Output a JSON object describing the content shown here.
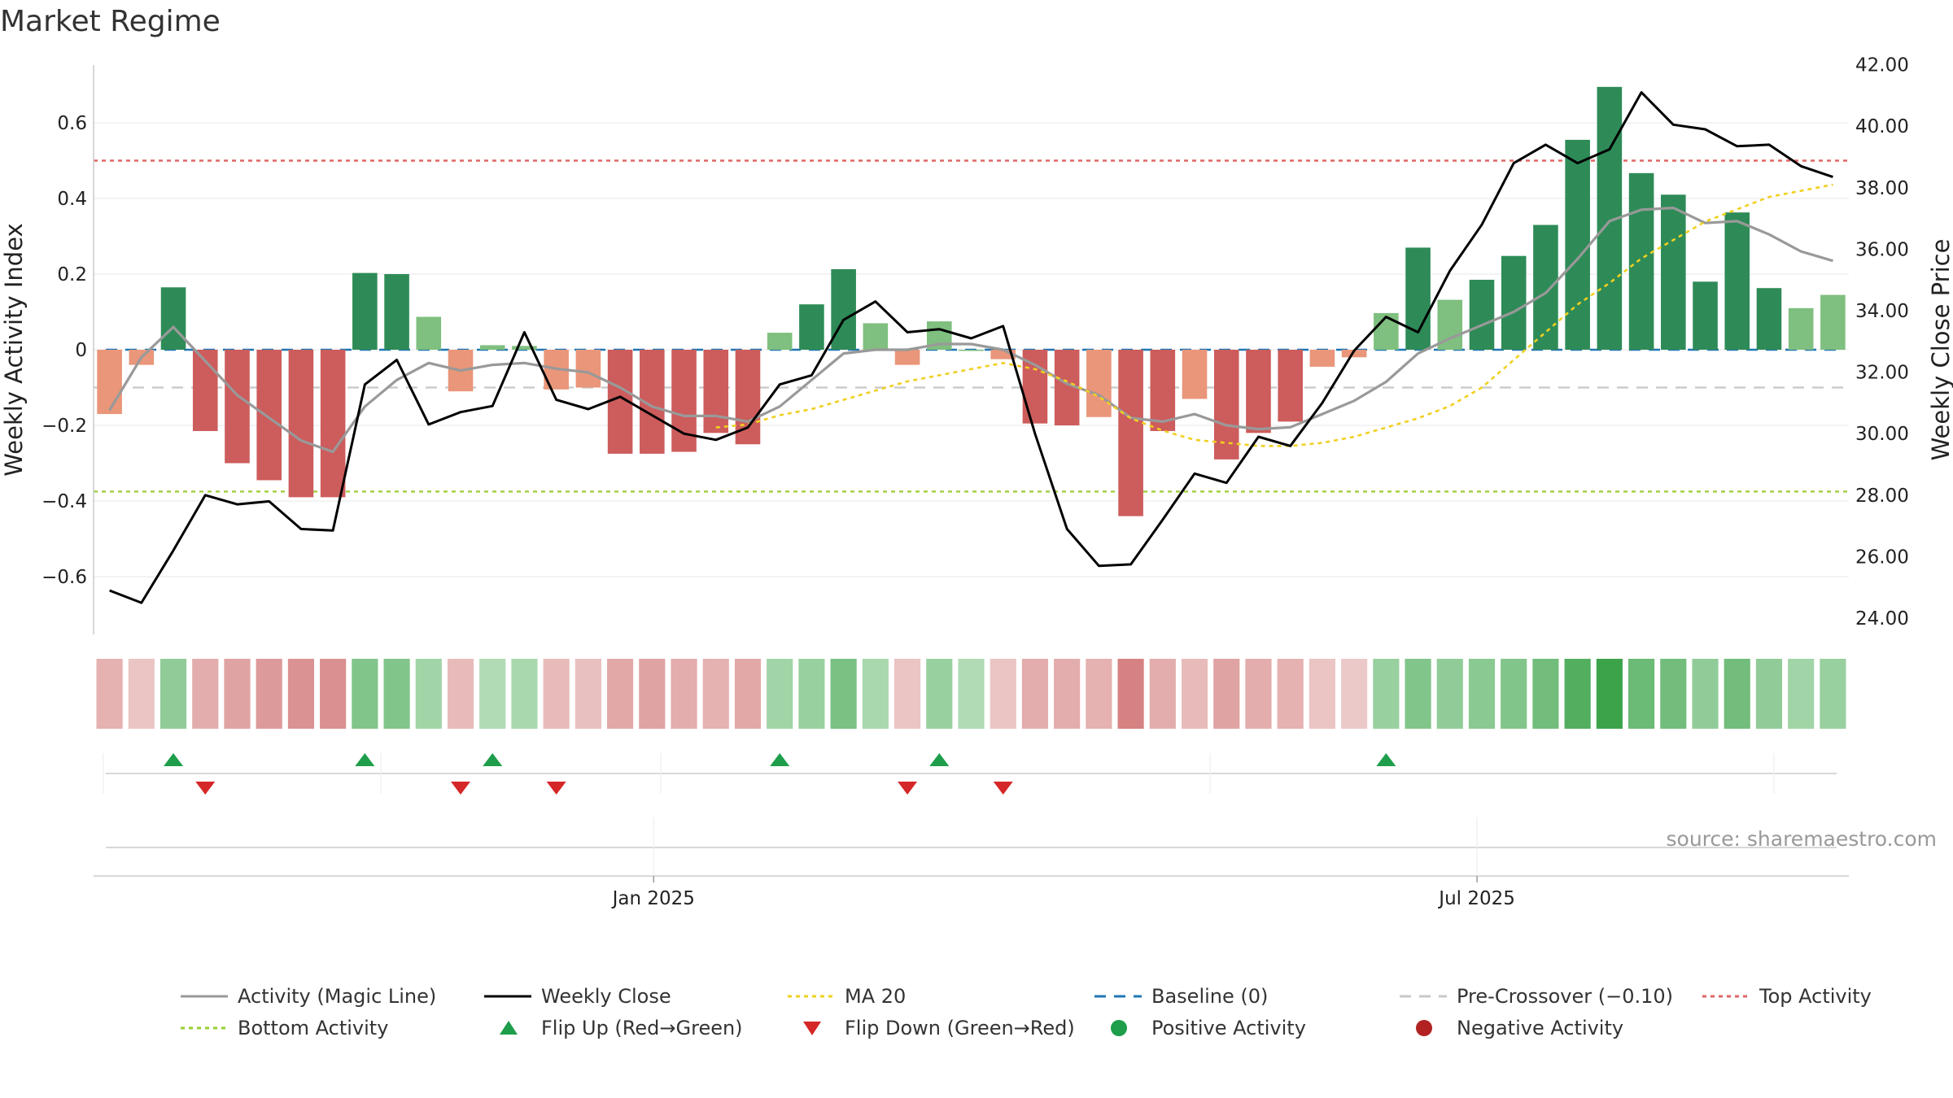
{
  "chart_data": {
    "type": "bar",
    "title": "Market Regime",
    "ylabel": "Weekly Activity Index",
    "y2label": "Weekly Close Price",
    "ylim": [
      -0.75,
      0.75
    ],
    "y2lim": [
      23.2,
      42.4
    ],
    "yticks": [
      -0.6,
      -0.4,
      -0.2,
      0,
      0.2,
      0.4,
      0.6
    ],
    "ytick_labels": [
      "−0.6",
      "−0.4",
      "−0.2",
      "0",
      "0.2",
      "0.4",
      "0.6"
    ],
    "y2ticks": [
      24,
      26,
      28,
      30,
      32,
      34,
      36,
      38,
      40,
      42
    ],
    "y2tick_labels": [
      "24.00",
      "26.00",
      "28.00",
      "30.00",
      "32.00",
      "34.00",
      "36.00",
      "38.00",
      "40.00",
      "42.00"
    ],
    "xtick_labels": [
      {
        "label": "Jan 2025",
        "week": 17.55
      },
      {
        "label": "Jul 2025",
        "week": 43.35
      }
    ],
    "reference_lines": {
      "baseline": 0,
      "pre_crossover": -0.1,
      "top_activity": 0.5,
      "bottom_activity": -0.375
    },
    "bars": [
      -0.17,
      -0.04,
      0.165,
      -0.215,
      -0.3,
      -0.345,
      -0.39,
      -0.39,
      0.203,
      0.2,
      0.087,
      -0.11,
      0.012,
      0.01,
      -0.105,
      -0.1,
      -0.275,
      -0.275,
      -0.27,
      -0.22,
      -0.25,
      0.045,
      0.12,
      0.213,
      0.07,
      -0.04,
      0.075,
      0.0,
      -0.025,
      -0.195,
      -0.2,
      -0.178,
      -0.44,
      -0.215,
      -0.13,
      -0.29,
      -0.22,
      -0.19,
      -0.045,
      -0.02,
      0.097,
      0.27,
      0.132,
      0.185,
      0.248,
      0.33,
      0.555,
      0.695,
      0.467,
      0.41,
      0.18,
      0.363,
      0.163,
      0.11,
      0.145
    ],
    "series": [
      {
        "name": "Activity (Magic Line)",
        "values": [
          -0.16,
          -0.02,
          0.06,
          -0.03,
          -0.12,
          -0.18,
          -0.24,
          -0.27,
          -0.15,
          -0.08,
          -0.035,
          -0.055,
          -0.04,
          -0.035,
          -0.05,
          -0.06,
          -0.1,
          -0.15,
          -0.175,
          -0.175,
          -0.19,
          -0.15,
          -0.08,
          -0.01,
          0.0,
          0.0,
          0.015,
          0.015,
          0.0,
          -0.04,
          -0.09,
          -0.12,
          -0.18,
          -0.19,
          -0.17,
          -0.2,
          -0.21,
          -0.205,
          -0.17,
          -0.135,
          -0.085,
          -0.01,
          0.03,
          0.065,
          0.1,
          0.15,
          0.24,
          0.34,
          0.37,
          0.375,
          0.335,
          0.34,
          0.305,
          0.26,
          0.235
        ]
      },
      {
        "name": "Weekly Close",
        "values": [
          24.9,
          24.5,
          26.2,
          28.0,
          27.7,
          27.8,
          26.9,
          26.85,
          31.6,
          32.4,
          30.3,
          30.7,
          30.9,
          33.3,
          31.1,
          30.8,
          31.2,
          30.6,
          30.0,
          29.8,
          30.2,
          31.6,
          31.9,
          33.7,
          34.3,
          33.3,
          33.4,
          33.1,
          33.5,
          30.0,
          26.9,
          25.7,
          25.75,
          27.2,
          28.7,
          28.4,
          29.9,
          29.6,
          31.0,
          32.7,
          33.8,
          33.3,
          35.3,
          36.8,
          38.8,
          39.4,
          38.8,
          39.25,
          41.1,
          40.05,
          39.9,
          39.35,
          39.4,
          38.7,
          38.35
        ]
      },
      {
        "name": "MA 20",
        "values": [
          null,
          null,
          null,
          null,
          null,
          null,
          null,
          null,
          null,
          null,
          null,
          null,
          null,
          null,
          null,
          null,
          null,
          null,
          null,
          30.2,
          30.3,
          30.6,
          30.8,
          31.1,
          31.4,
          31.7,
          31.9,
          32.1,
          32.3,
          32.1,
          31.7,
          31.2,
          30.5,
          30.1,
          29.8,
          29.7,
          29.6,
          29.6,
          29.7,
          29.9,
          30.2,
          30.5,
          30.9,
          31.5,
          32.4,
          33.3,
          34.2,
          34.9,
          35.7,
          36.3,
          36.9,
          37.3,
          37.7,
          37.9,
          38.1
        ]
      }
    ],
    "strip_levels": [
      -0.45,
      -0.25,
      0.45,
      -0.5,
      -0.6,
      -0.7,
      -0.78,
      -0.8,
      0.55,
      0.55,
      0.35,
      -0.35,
      0.25,
      0.3,
      -0.35,
      -0.3,
      -0.55,
      -0.6,
      -0.5,
      -0.45,
      -0.55,
      0.35,
      0.4,
      0.6,
      0.3,
      -0.25,
      0.4,
      0.25,
      -0.25,
      -0.5,
      -0.5,
      -0.45,
      -0.95,
      -0.5,
      -0.35,
      -0.6,
      -0.5,
      -0.45,
      -0.25,
      -0.2,
      0.4,
      0.55,
      0.45,
      0.5,
      0.55,
      0.65,
      0.85,
      1.0,
      0.7,
      0.65,
      0.45,
      0.65,
      0.45,
      0.35,
      0.4
    ],
    "flip_up_weeks": [
      2,
      8,
      12,
      21,
      26,
      40
    ],
    "flip_down_weeks": [
      3,
      11,
      14,
      25,
      28
    ],
    "colors": {
      "strong_green": "#2e8b57",
      "light_green": "#7fbf7f",
      "strong_red": "#cd5c5c",
      "light_red": "#e9967a",
      "magic_line": "#999999",
      "close_line": "#000000",
      "ma20": "#f0d020",
      "baseline": "#1f77b4",
      "pre_crossover": "#c8c8c8",
      "top_activity": "#e06666",
      "bottom_activity": "#9acd32",
      "flip_up": "#1e9e4a",
      "flip_down": "#d62728",
      "positive_activity": "#1e9e4a",
      "negative_activity": "#b22222"
    },
    "legend_placement": "bottom",
    "legend": [
      {
        "label": "Activity (Magic Line)",
        "kind": "line",
        "color": "#999999",
        "dash": ""
      },
      {
        "label": "Weekly Close",
        "kind": "line",
        "color": "#000000",
        "dash": ""
      },
      {
        "label": "MA 20",
        "kind": "line",
        "color": "#f0d020",
        "dash": "5,5"
      },
      {
        "label": "Baseline (0)",
        "kind": "line",
        "color": "#1f77b4",
        "dash": "14,10"
      },
      {
        "label": "Pre-Crossover (−0.10)",
        "kind": "line",
        "color": "#c8c8c8",
        "dash": "14,10"
      },
      {
        "label": "Top Activity",
        "kind": "line",
        "color": "#e06666",
        "dash": "5,5"
      },
      {
        "label": "Bottom Activity",
        "kind": "line",
        "color": "#9acd32",
        "dash": "5,5"
      },
      {
        "label": "Flip Up (Red→Green)",
        "kind": "tri-up",
        "color": "#1e9e4a"
      },
      {
        "label": "Flip Down (Green→Red)",
        "kind": "tri-down",
        "color": "#d62728"
      },
      {
        "label": "Positive Activity",
        "kind": "dot",
        "color": "#1e9e4a"
      },
      {
        "label": "Negative Activity",
        "kind": "dot",
        "color": "#b22222"
      }
    ],
    "grid": true
  },
  "source": "source: sharemaestro.com"
}
